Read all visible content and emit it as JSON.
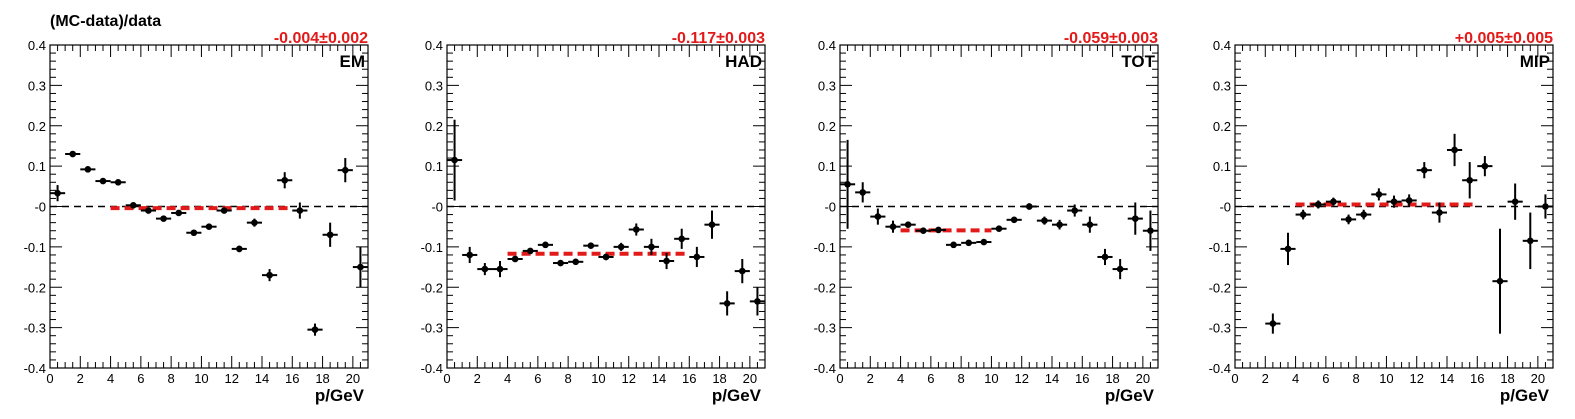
{
  "figure": {
    "ylabel": "(MC-data)/data",
    "xlabel": "p/GeV"
  },
  "colors": {
    "points": "#000000",
    "fit": "#e21a1a",
    "reference": "#000000"
  },
  "chart_data": [
    {
      "type": "scatter",
      "panel_label": "EM",
      "fit_label": "-0.004±0.002",
      "fit_value": -0.004,
      "fit_range": [
        4,
        16
      ],
      "xlim": [
        0,
        21
      ],
      "ylim": [
        -0.4,
        0.4
      ],
      "x_ticks": [
        0,
        2,
        4,
        6,
        8,
        10,
        12,
        14,
        16,
        18,
        20
      ],
      "y_ticks": [
        -0.4,
        -0.3,
        -0.2,
        -0.1,
        0,
        0.1,
        0.2,
        0.3,
        0.4
      ],
      "y_tick_labels": [
        "-0.4",
        "-0.3",
        "-0.2",
        "-0.1",
        "-0",
        "0.1",
        "0.2",
        "0.3",
        "0.4"
      ],
      "xlabel": "p/GeV",
      "points": [
        {
          "x": 0.5,
          "y": 0.033,
          "err": 0.02
        },
        {
          "x": 1.5,
          "y": 0.13,
          "err": 0.007
        },
        {
          "x": 2.5,
          "y": 0.092,
          "err": 0.007
        },
        {
          "x": 3.5,
          "y": 0.063,
          "err": 0.006
        },
        {
          "x": 4.5,
          "y": 0.06,
          "err": 0.005
        },
        {
          "x": 5.5,
          "y": 0.003,
          "err": 0.005
        },
        {
          "x": 6.5,
          "y": -0.01,
          "err": 0.005
        },
        {
          "x": 7.5,
          "y": -0.03,
          "err": 0.005
        },
        {
          "x": 8.5,
          "y": -0.016,
          "err": 0.006
        },
        {
          "x": 9.5,
          "y": -0.065,
          "err": 0.006
        },
        {
          "x": 10.5,
          "y": -0.05,
          "err": 0.006
        },
        {
          "x": 11.5,
          "y": -0.01,
          "err": 0.007
        },
        {
          "x": 12.5,
          "y": -0.105,
          "err": 0.008
        },
        {
          "x": 13.5,
          "y": -0.04,
          "err": 0.01
        },
        {
          "x": 14.5,
          "y": -0.17,
          "err": 0.015
        },
        {
          "x": 15.5,
          "y": 0.065,
          "err": 0.02
        },
        {
          "x": 16.5,
          "y": -0.01,
          "err": 0.02
        },
        {
          "x": 17.5,
          "y": -0.305,
          "err": 0.015
        },
        {
          "x": 18.5,
          "y": -0.07,
          "err": 0.03
        },
        {
          "x": 19.5,
          "y": 0.09,
          "err": 0.03
        },
        {
          "x": 20.5,
          "y": -0.15,
          "err": 0.05
        }
      ]
    },
    {
      "type": "scatter",
      "panel_label": "HAD",
      "fit_label": "-0.117±0.003",
      "fit_value": -0.117,
      "fit_range": [
        4,
        16
      ],
      "xlim": [
        0,
        21
      ],
      "ylim": [
        -0.4,
        0.4
      ],
      "x_ticks": [
        0,
        2,
        4,
        6,
        8,
        10,
        12,
        14,
        16,
        18,
        20
      ],
      "y_ticks": [
        -0.4,
        -0.3,
        -0.2,
        -0.1,
        0,
        0.1,
        0.2,
        0.3,
        0.4
      ],
      "y_tick_labels": [
        "-0.4",
        "-0.3",
        "-0.2",
        "-0.1",
        "-0",
        "0.1",
        "0.2",
        "0.3",
        "0.4"
      ],
      "xlabel": "p/GeV",
      "points": [
        {
          "x": 0.5,
          "y": 0.115,
          "err": 0.1
        },
        {
          "x": 1.5,
          "y": -0.12,
          "err": 0.02
        },
        {
          "x": 2.5,
          "y": -0.155,
          "err": 0.015
        },
        {
          "x": 3.5,
          "y": -0.155,
          "err": 0.02
        },
        {
          "x": 4.5,
          "y": -0.13,
          "err": 0.006
        },
        {
          "x": 5.5,
          "y": -0.11,
          "err": 0.006
        },
        {
          "x": 6.5,
          "y": -0.095,
          "err": 0.005
        },
        {
          "x": 7.5,
          "y": -0.14,
          "err": 0.006
        },
        {
          "x": 8.5,
          "y": -0.137,
          "err": 0.006
        },
        {
          "x": 9.5,
          "y": -0.097,
          "err": 0.006
        },
        {
          "x": 10.5,
          "y": -0.125,
          "err": 0.008
        },
        {
          "x": 11.5,
          "y": -0.1,
          "err": 0.01
        },
        {
          "x": 12.5,
          "y": -0.057,
          "err": 0.015
        },
        {
          "x": 13.5,
          "y": -0.1,
          "err": 0.02
        },
        {
          "x": 14.5,
          "y": -0.135,
          "err": 0.02
        },
        {
          "x": 15.5,
          "y": -0.08,
          "err": 0.025
        },
        {
          "x": 16.5,
          "y": -0.125,
          "err": 0.025
        },
        {
          "x": 17.5,
          "y": -0.045,
          "err": 0.035
        },
        {
          "x": 18.5,
          "y": -0.24,
          "err": 0.03
        },
        {
          "x": 19.5,
          "y": -0.16,
          "err": 0.03
        },
        {
          "x": 20.5,
          "y": -0.235,
          "err": 0.035
        }
      ]
    },
    {
      "type": "scatter",
      "panel_label": "TOT",
      "fit_label": "-0.059±0.003",
      "fit_value": -0.059,
      "fit_range": [
        4,
        10
      ],
      "xlim": [
        0,
        21
      ],
      "ylim": [
        -0.4,
        0.4
      ],
      "x_ticks": [
        0,
        2,
        4,
        6,
        8,
        10,
        12,
        14,
        16,
        18,
        20
      ],
      "y_ticks": [
        -0.4,
        -0.3,
        -0.2,
        -0.1,
        0,
        0.1,
        0.2,
        0.3,
        0.4
      ],
      "y_tick_labels": [
        "-0.4",
        "-0.3",
        "-0.2",
        "-0.1",
        "-0",
        "0.1",
        "0.2",
        "0.3",
        "0.4"
      ],
      "xlabel": "p/GeV",
      "points": [
        {
          "x": 0.5,
          "y": 0.055,
          "err": 0.11
        },
        {
          "x": 1.5,
          "y": 0.035,
          "err": 0.025
        },
        {
          "x": 2.5,
          "y": -0.025,
          "err": 0.02
        },
        {
          "x": 3.5,
          "y": -0.05,
          "err": 0.015
        },
        {
          "x": 4.5,
          "y": -0.045,
          "err": 0.006
        },
        {
          "x": 5.5,
          "y": -0.06,
          "err": 0.005
        },
        {
          "x": 6.5,
          "y": -0.058,
          "err": 0.005
        },
        {
          "x": 7.5,
          "y": -0.095,
          "err": 0.005
        },
        {
          "x": 8.5,
          "y": -0.09,
          "err": 0.005
        },
        {
          "x": 9.5,
          "y": -0.088,
          "err": 0.005
        },
        {
          "x": 10.5,
          "y": -0.055,
          "err": 0.006
        },
        {
          "x": 11.5,
          "y": -0.033,
          "err": 0.007
        },
        {
          "x": 12.5,
          "y": 0.0,
          "err": 0.008
        },
        {
          "x": 13.5,
          "y": -0.035,
          "err": 0.01
        },
        {
          "x": 14.5,
          "y": -0.045,
          "err": 0.012
        },
        {
          "x": 15.5,
          "y": -0.01,
          "err": 0.015
        },
        {
          "x": 16.5,
          "y": -0.045,
          "err": 0.02
        },
        {
          "x": 17.5,
          "y": -0.125,
          "err": 0.02
        },
        {
          "x": 18.5,
          "y": -0.155,
          "err": 0.025
        },
        {
          "x": 19.5,
          "y": -0.03,
          "err": 0.04
        },
        {
          "x": 20.5,
          "y": -0.06,
          "err": 0.05
        }
      ]
    },
    {
      "type": "scatter",
      "panel_label": "MIP",
      "fit_label": "+0.005±0.005",
      "fit_value": 0.005,
      "fit_range": [
        4,
        16
      ],
      "xlim": [
        0,
        21
      ],
      "ylim": [
        -0.4,
        0.4
      ],
      "x_ticks": [
        0,
        2,
        4,
        6,
        8,
        10,
        12,
        14,
        16,
        18,
        20
      ],
      "y_ticks": [
        -0.4,
        -0.3,
        -0.2,
        -0.1,
        0,
        0.1,
        0.2,
        0.3,
        0.4
      ],
      "y_tick_labels": [
        "-0.4",
        "-0.3",
        "-0.2",
        "-0.1",
        "-0",
        "0.1",
        "0.2",
        "0.3",
        "0.4"
      ],
      "xlabel": "p/GeV",
      "points": [
        {
          "x": 2.5,
          "y": -0.29,
          "err": 0.025
        },
        {
          "x": 3.5,
          "y": -0.105,
          "err": 0.04
        },
        {
          "x": 4.5,
          "y": -0.02,
          "err": 0.012
        },
        {
          "x": 5.5,
          "y": 0.005,
          "err": 0.01
        },
        {
          "x": 6.5,
          "y": 0.012,
          "err": 0.01
        },
        {
          "x": 7.5,
          "y": -0.032,
          "err": 0.012
        },
        {
          "x": 8.5,
          "y": -0.02,
          "err": 0.012
        },
        {
          "x": 9.5,
          "y": 0.03,
          "err": 0.015
        },
        {
          "x": 10.5,
          "y": 0.012,
          "err": 0.015
        },
        {
          "x": 11.5,
          "y": 0.015,
          "err": 0.015
        },
        {
          "x": 12.5,
          "y": 0.09,
          "err": 0.02
        },
        {
          "x": 13.5,
          "y": -0.015,
          "err": 0.025
        },
        {
          "x": 14.5,
          "y": 0.14,
          "err": 0.04
        },
        {
          "x": 15.5,
          "y": 0.065,
          "err": 0.045
        },
        {
          "x": 16.5,
          "y": 0.1,
          "err": 0.025
        },
        {
          "x": 17.5,
          "y": -0.185,
          "err": 0.13
        },
        {
          "x": 18.5,
          "y": 0.012,
          "err": 0.045
        },
        {
          "x": 19.5,
          "y": -0.085,
          "err": 0.07
        },
        {
          "x": 20.5,
          "y": 0.0,
          "err": 0.03
        }
      ]
    }
  ]
}
